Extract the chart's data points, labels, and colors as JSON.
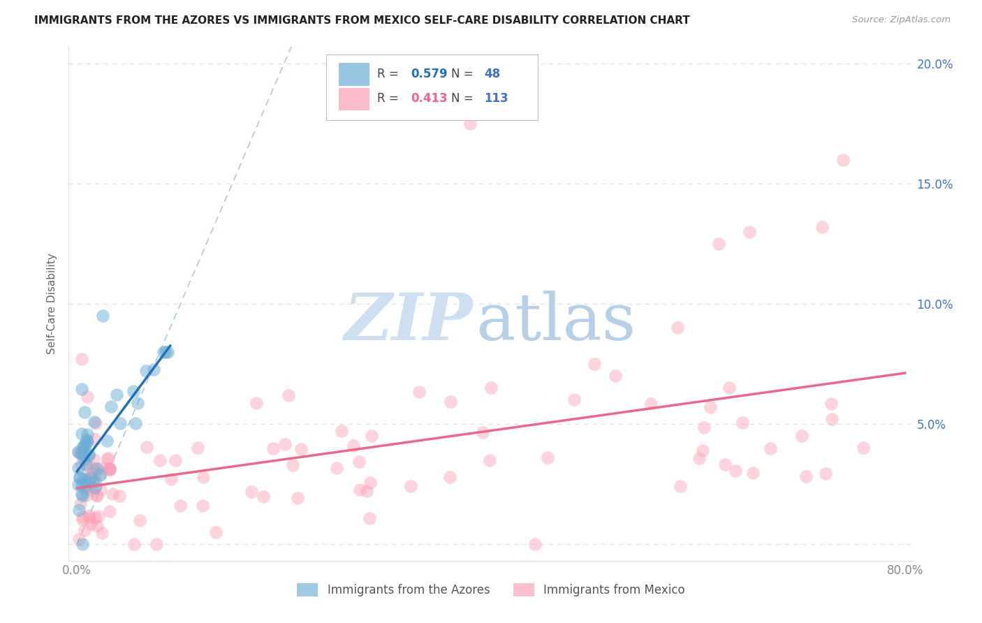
{
  "title": "IMMIGRANTS FROM THE AZORES VS IMMIGRANTS FROM MEXICO SELF-CARE DISABILITY CORRELATION CHART",
  "source": "Source: ZipAtlas.com",
  "ylabel": "Self-Care Disability",
  "xlim": [
    -0.008,
    0.808
  ],
  "ylim": [
    -0.007,
    0.207
  ],
  "xtick_positions": [
    0.0,
    0.1,
    0.2,
    0.3,
    0.4,
    0.5,
    0.6,
    0.7,
    0.8
  ],
  "xticklabels": [
    "0.0%",
    "",
    "",
    "",
    "",
    "",
    "",
    "",
    "80.0%"
  ],
  "ytick_positions": [
    0.0,
    0.05,
    0.1,
    0.15,
    0.2
  ],
  "yticklabels_right": [
    "",
    "5.0%",
    "10.0%",
    "15.0%",
    "20.0%"
  ],
  "legend_label1": "Immigrants from the Azores",
  "legend_label2": "Immigrants from Mexico",
  "R1": "0.579",
  "N1": "48",
  "R2": "0.413",
  "N2": "113",
  "color1": "#6baed6",
  "color2": "#fb9eb5",
  "line_color1": "#2171b5",
  "line_color2": "#e8698a",
  "diagonal_color": "#aec8e0",
  "right_tick_color": "#4472C4",
  "grid_color": "#e0e0e0",
  "title_color": "#222222",
  "source_color": "#999999",
  "ylabel_color": "#666666",
  "xtick_color": "#888888",
  "watermark_zip_color": "#cddff0",
  "watermark_atlas_color": "#b8cfe8"
}
